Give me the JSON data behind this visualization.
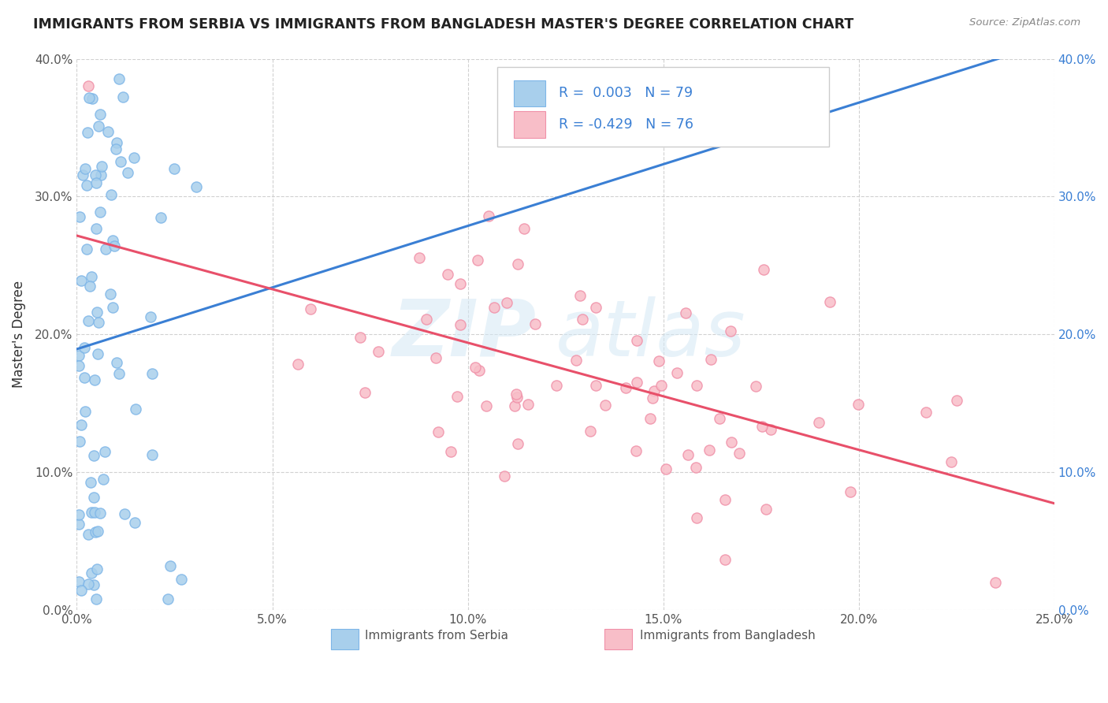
{
  "title": "IMMIGRANTS FROM SERBIA VS IMMIGRANTS FROM BANGLADESH MASTER'S DEGREE CORRELATION CHART",
  "source": "Source: ZipAtlas.com",
  "ylabel": "Master's Degree",
  "xlim": [
    0.0,
    0.25
  ],
  "ylim": [
    0.0,
    0.4
  ],
  "xtick_vals": [
    0.0,
    0.05,
    0.1,
    0.15,
    0.2,
    0.25
  ],
  "ytick_vals": [
    0.0,
    0.1,
    0.2,
    0.3,
    0.4
  ],
  "xtick_labels": [
    "0.0%",
    "5.0%",
    "10.0%",
    "15.0%",
    "20.0%",
    "25.0%"
  ],
  "ytick_labels": [
    "0.0%",
    "10.0%",
    "20.0%",
    "30.0%",
    "40.0%"
  ],
  "serbia_color": "#A8CFEC",
  "serbia_edge": "#7EB6E8",
  "bangladesh_color": "#F8BEC8",
  "bangladesh_edge": "#F090A8",
  "serbia_line_color": "#3A7FD4",
  "bangladesh_line_color": "#E8506A",
  "serbia_R": 0.003,
  "serbia_N": 79,
  "bangladesh_R": -0.429,
  "bangladesh_N": 76,
  "legend_R_color": "#3A7FD4",
  "legend_N_color": "#3A7FD4",
  "watermark_zip_color": "#D8E8F4",
  "watermark_atlas_color": "#D8E8F4"
}
